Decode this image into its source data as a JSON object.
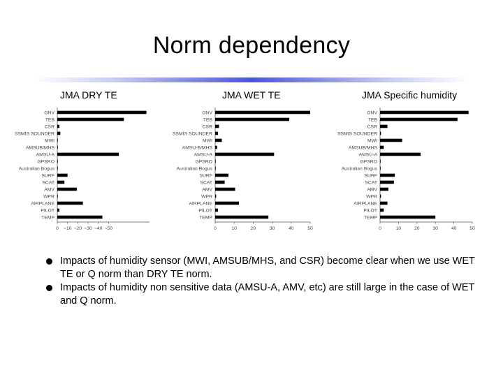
{
  "slide": {
    "title": "Norm dependency",
    "bullets": [
      "Impacts of humidity sensor (MWI, AMSUB/MHS, and CSR) become clear when we use WET TE or Q norm than DRY TE norm.",
      "Impacts of humidity non sensitive data (AMSU-A, AMV, etc) are still large in the case of WET and Q norm."
    ]
  },
  "accent_color": "#4a55d8",
  "chart_data": [
    {
      "type": "bar",
      "orientation": "horizontal",
      "title": "JMA DRY TE",
      "categories": [
        "GNV",
        "TEB",
        "CSR",
        "SSMIS SOUNDER",
        "MWI",
        "AMSUB/MHS",
        "AMSU-A",
        "GPSRO",
        "Australian Bogus",
        "SURF",
        "SCAT",
        "AMV",
        "WPR",
        "AIRPLANE",
        "PILOT",
        "TEMP"
      ],
      "values": [
        87,
        65,
        2,
        3,
        0.5,
        0.5,
        60,
        0.3,
        0.3,
        10,
        7,
        19,
        0.5,
        25,
        2,
        44
      ],
      "xlim": [
        0,
        90
      ],
      "ticks": [
        0,
        10,
        20,
        30,
        40,
        50
      ],
      "tick_labels": [
        "0",
        "~10",
        "~20",
        "~30",
        "~40",
        "~50"
      ]
    },
    {
      "type": "bar",
      "orientation": "horizontal",
      "title": "JMA WET TE",
      "categories": [
        "GNV",
        "TEB",
        "CSR",
        "SSMIS SOUNDER",
        "MWI",
        "AMSU-B/MHS",
        "AMSU-A",
        "GPSRO",
        "Australian Bogus",
        "SURF",
        "SCAT",
        "AMV",
        "WPR",
        "AIRPLANE",
        "PILOT",
        "TEMP"
      ],
      "values": [
        50,
        39,
        2,
        1.5,
        3.5,
        1,
        31,
        0.3,
        0.3,
        7,
        5,
        10.5,
        0.5,
        12.5,
        1.5,
        28
      ],
      "xlim": [
        0,
        50
      ],
      "ticks": [
        0,
        10,
        20,
        30,
        40,
        50
      ],
      "tick_labels": [
        "0",
        "10",
        "20",
        "30",
        "40",
        "50"
      ]
    },
    {
      "type": "bar",
      "orientation": "horizontal",
      "title": "JMA Specific humidity",
      "categories": [
        "GNV",
        "TEB",
        "CSR",
        "SSMIS SOUNDER",
        "MWI",
        "AMSUB/MHS",
        "AMSU-A",
        "GPSRO",
        "Australian Bogus",
        "SURF",
        "SCAT",
        "AMV",
        "WPR",
        "AIRPLANE",
        "PILOT",
        "TEMP"
      ],
      "values": [
        48,
        42,
        4,
        0.5,
        12,
        2,
        22,
        0.3,
        0.3,
        8,
        7.5,
        4.5,
        0.5,
        4,
        2,
        30
      ],
      "xlim": [
        0,
        50
      ],
      "ticks": [
        0,
        10,
        20,
        30,
        40,
        50
      ],
      "tick_labels": [
        "0",
        "10",
        "20",
        "30",
        "40",
        "50"
      ]
    }
  ]
}
